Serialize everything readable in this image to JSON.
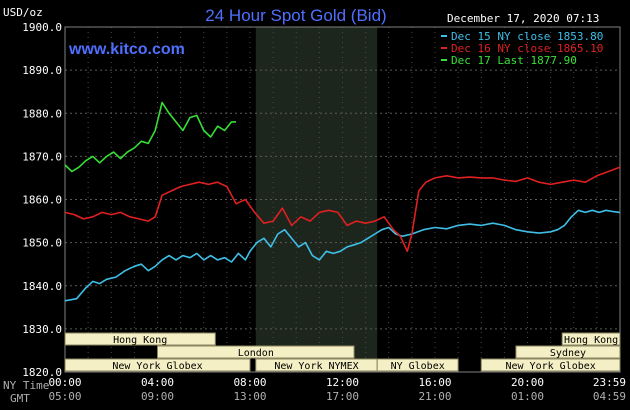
{
  "header": {
    "units_label": "USD/oz",
    "title": "24 Hour Spot Gold (Bid)",
    "timestamp": "December 17, 2020 07:13",
    "website": "www.kitco.com"
  },
  "axis_labels": {
    "ny_time": "NY Time",
    "gmt": "GMT"
  },
  "legend": [
    {
      "text": "Dec 15 NY close 1853.80",
      "color": "#3fbfe8"
    },
    {
      "text": "Dec 16 NY close 1865.10",
      "color": "#e02020"
    },
    {
      "text": "Dec 17 Last 1877.90",
      "color": "#36e036"
    }
  ],
  "markets": [
    {
      "name": "Hong Kong",
      "start": 0,
      "end": 6.5,
      "row": 0
    },
    {
      "name": "Hong Kong",
      "start": 21.5,
      "end": 24,
      "row": 0
    },
    {
      "name": "London",
      "start": 4,
      "end": 12.5,
      "row": 1
    },
    {
      "name": "Sydney",
      "start": 19.5,
      "end": 24,
      "row": 1
    },
    {
      "name": "New York Globex",
      "start": 0,
      "end": 8,
      "row": 2
    },
    {
      "name": "New York NYMEX",
      "start": 8.25,
      "end": 13.5,
      "row": 2
    },
    {
      "name": "NY Globex",
      "start": 13.5,
      "end": 17,
      "row": 2
    },
    {
      "name": "New York Globex",
      "start": 18,
      "end": 24,
      "row": 2
    }
  ],
  "chart_data": {
    "type": "line",
    "title": "24 Hour Spot Gold (Bid)",
    "ylabel": "USD/oz",
    "ylim": [
      1820,
      1900
    ],
    "yticks": [
      "1820.0",
      "1830.0",
      "1840.0",
      "1850.0",
      "1860.0",
      "1870.0",
      "1880.0",
      "1890.0",
      "1900.0"
    ],
    "xlim": [
      0,
      24
    ],
    "xticks_ny": [
      "00:00",
      "04:00",
      "08:00",
      "12:00",
      "16:00",
      "20:00",
      "23:59"
    ],
    "xticks_gmt": [
      "05:00",
      "09:00",
      "13:00",
      "17:00",
      "21:00",
      "01:00",
      "04:59"
    ],
    "shaded_region": [
      8.25,
      13.5
    ],
    "series": [
      {
        "name": "Dec 15 NY close 1853.80",
        "color": "#3fbfe8",
        "x": [
          0,
          0.5,
          0.9,
          1.2,
          1.5,
          1.8,
          2.2,
          2.6,
          3.0,
          3.3,
          3.6,
          3.9,
          4.2,
          4.5,
          4.8,
          5.1,
          5.4,
          5.7,
          6.0,
          6.3,
          6.6,
          6.9,
          7.2,
          7.5,
          7.8,
          8.0,
          8.3,
          8.6,
          8.9,
          9.2,
          9.5,
          9.8,
          10.1,
          10.4,
          10.7,
          11.0,
          11.3,
          11.6,
          11.9,
          12.2,
          12.5,
          12.8,
          13.1,
          13.4,
          13.7,
          14.0,
          14.3,
          14.6,
          15.0,
          15.5,
          16.0,
          16.5,
          17.0,
          17.5,
          18.0,
          18.5,
          19.0,
          19.5,
          20.0,
          20.5,
          21.0,
          21.3,
          21.6,
          21.9,
          22.2,
          22.5,
          22.8,
          23.1,
          23.4,
          23.7,
          23.99
        ],
        "values": [
          1836.5,
          1837,
          1839.5,
          1841,
          1840.5,
          1841.5,
          1842,
          1843.5,
          1844.5,
          1845,
          1843.5,
          1844.5,
          1846,
          1847,
          1846,
          1847,
          1846.5,
          1847.5,
          1846,
          1847,
          1846,
          1846.5,
          1845.5,
          1847.5,
          1846,
          1848,
          1850,
          1851,
          1849,
          1852,
          1853,
          1851,
          1849,
          1850,
          1847,
          1846,
          1848,
          1847.5,
          1848,
          1849,
          1849.5,
          1850,
          1851,
          1852,
          1853,
          1853.5,
          1852,
          1851.5,
          1852,
          1853,
          1853.5,
          1853.2,
          1854,
          1854.3,
          1854,
          1854.5,
          1854,
          1853,
          1852.5,
          1852.2,
          1852.5,
          1853,
          1854,
          1856,
          1857.5,
          1857,
          1857.5,
          1857,
          1857.5,
          1857.2,
          1857
        ]
      },
      {
        "name": "Dec 16 NY close 1865.10",
        "color": "#e02020",
        "x": [
          0,
          0.4,
          0.8,
          1.2,
          1.6,
          2.0,
          2.4,
          2.8,
          3.2,
          3.6,
          3.9,
          4.2,
          4.6,
          5.0,
          5.4,
          5.8,
          6.2,
          6.6,
          7.0,
          7.4,
          7.8,
          8.2,
          8.6,
          9.0,
          9.4,
          9.8,
          10.2,
          10.6,
          11.0,
          11.4,
          11.8,
          12.2,
          12.6,
          13.0,
          13.4,
          13.8,
          14.2,
          14.5,
          14.8,
          15.0,
          15.3,
          15.6,
          16.0,
          16.5,
          17.0,
          17.5,
          18.0,
          18.5,
          19.0,
          19.5,
          20.0,
          20.5,
          21.0,
          21.5,
          22.0,
          22.5,
          23.0,
          23.5,
          23.99
        ],
        "values": [
          1857,
          1856.5,
          1855.5,
          1856,
          1857,
          1856.5,
          1857,
          1856,
          1855.5,
          1855,
          1856,
          1861,
          1862,
          1863,
          1863.5,
          1864,
          1863.5,
          1864,
          1863,
          1859,
          1860,
          1857,
          1854.5,
          1855,
          1858,
          1854,
          1856,
          1855,
          1857,
          1857.5,
          1857,
          1854,
          1855,
          1854.5,
          1855,
          1856,
          1853,
          1851.5,
          1848,
          1852,
          1862,
          1864,
          1865,
          1865.5,
          1865,
          1865.2,
          1865,
          1865,
          1864.5,
          1864.2,
          1865,
          1864,
          1863.5,
          1864,
          1864.5,
          1864,
          1865.5,
          1866.5,
          1867.5
        ]
      },
      {
        "name": "Dec 17 Last 1877.90",
        "color": "#36e036",
        "x": [
          0,
          0.3,
          0.6,
          0.9,
          1.2,
          1.5,
          1.8,
          2.1,
          2.4,
          2.7,
          3.0,
          3.3,
          3.6,
          3.9,
          4.2,
          4.5,
          4.8,
          5.1,
          5.4,
          5.7,
          6.0,
          6.3,
          6.6,
          6.9,
          7.2,
          7.4
        ],
        "values": [
          1868,
          1866.5,
          1867.5,
          1869,
          1870,
          1868.5,
          1870,
          1871,
          1869.5,
          1871,
          1872,
          1873.5,
          1873,
          1876,
          1882.5,
          1880,
          1878,
          1876,
          1879,
          1879.5,
          1876,
          1874.5,
          1877,
          1876,
          1878,
          1878
        ]
      }
    ]
  }
}
